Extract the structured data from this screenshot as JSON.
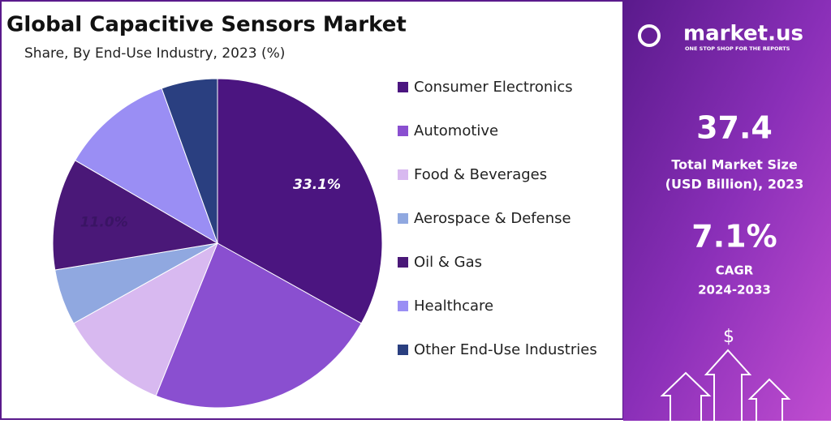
{
  "chart_data": {
    "type": "pie",
    "title": "Global Capacitive Sensors Market",
    "subtitle": "Share, By End-Use Industry, 2023 (%)",
    "categories": [
      "Consumer Electronics",
      "Automotive",
      "Food & Beverages",
      "Aerospace & Defense",
      "Oil & Gas",
      "Healthcare",
      "Other End-Use Industries"
    ],
    "values": [
      33.1,
      23.0,
      10.8,
      5.5,
      11.0,
      11.1,
      5.5
    ],
    "value_labels": [
      "33.1%",
      null,
      null,
      null,
      "11.0%",
      null,
      null
    ],
    "colors": [
      "#4b1580",
      "#8a4fd0",
      "#d8b9f0",
      "#90a8e0",
      "#4a1878",
      "#9a8ef4",
      "#2a3f80"
    ],
    "legend": "right"
  },
  "panel": {
    "brand": "market.us",
    "tagline": "ONE STOP SHOP FOR THE REPORTS",
    "market_size": "37.4",
    "market_size_label_1": "Total Market Size",
    "market_size_label_2": "(USD Billion), 2023",
    "cagr": "7.1%",
    "cagr_label_1": "CAGR",
    "cagr_label_2": "2024-2033",
    "icon": "$"
  }
}
